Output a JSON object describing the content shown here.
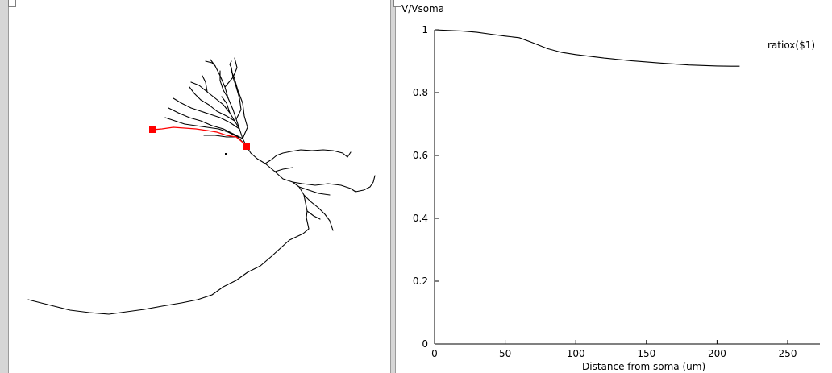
{
  "morphology": {
    "colors": {
      "dendrite": "#000000",
      "path": "#ff0000",
      "marker": "#ff0000"
    }
  },
  "chart_data": {
    "type": "line",
    "ylabel": "V/Vsoma",
    "xlabel": "Distance from soma (um)",
    "xlim": [
      0,
      250
    ],
    "ylim": [
      0,
      1
    ],
    "x_ticks": [
      0,
      50,
      100,
      150,
      200,
      250
    ],
    "y_ticks": [
      0,
      0.2,
      0.4,
      0.6,
      0.8,
      1
    ],
    "grid": false,
    "series": [
      {
        "name": "ratiox($1)",
        "color": "#000000",
        "x": [
          0,
          10,
          20,
          30,
          40,
          50,
          60,
          70,
          80,
          90,
          100,
          120,
          140,
          160,
          180,
          200,
          210,
          216
        ],
        "y": [
          1.0,
          0.998,
          0.996,
          0.992,
          0.986,
          0.98,
          0.975,
          0.958,
          0.94,
          0.928,
          0.921,
          0.91,
          0.901,
          0.894,
          0.888,
          0.885,
          0.884,
          0.884
        ]
      }
    ]
  }
}
